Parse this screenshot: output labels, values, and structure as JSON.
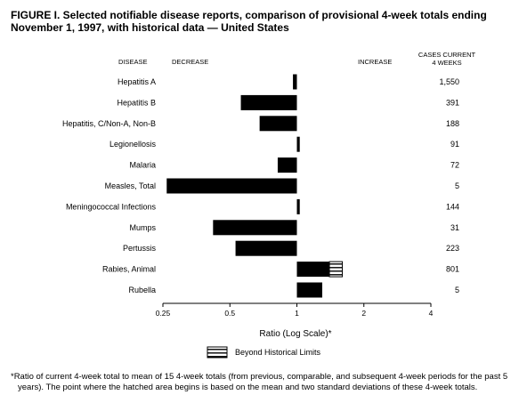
{
  "title": "FIGURE I. Selected notifiable disease reports, comparison of provisional 4-week totals ending November 1, 1997, with historical data — United States",
  "headers": {
    "disease": "DISEASE",
    "decrease": "DECREASE",
    "increase": "INCREASE",
    "cases_line1": "CASES CURRENT",
    "cases_line2": "4 WEEKS"
  },
  "legend_label": "Beyond Historical Limits",
  "footnote": "*Ratio of current 4-week total to mean of 15 4-week totals (from previous, comparable, and subsequent 4-week periods for the past 5 years). The point where the hatched area begins is based on the mean and two standard deviations of these 4-week totals.",
  "colors": {
    "bar": "#000000",
    "hatch_fill": "#ffffff",
    "background": "#ffffff"
  },
  "chart_data": {
    "type": "bar",
    "orientation": "horizontal",
    "xlabel": "Ratio (Log Scale)*",
    "xscale": "log2",
    "xlim": [
      0.25,
      4
    ],
    "xticks": [
      "0.25",
      "0.5",
      "1",
      "2",
      "4"
    ],
    "xtick_values": [
      0.25,
      0.5,
      1,
      2,
      4
    ],
    "baseline": 1,
    "categories": [
      "Hepatitis A",
      "Hepatitis B",
      "Hepatitis, C/Non-A, Non-B",
      "Legionellosis",
      "Malaria",
      "Measles, Total",
      "Meningococcal Infections",
      "Mumps",
      "Pertussis",
      "Rabies, Animal",
      "Rubella"
    ],
    "values": [
      0.96,
      0.56,
      0.68,
      1.03,
      0.82,
      0.26,
      1.03,
      0.42,
      0.53,
      1.6,
      1.3
    ],
    "cases_current_4_weeks": [
      "1,550",
      "391",
      "188",
      "91",
      "72",
      "5",
      "144",
      "31",
      "223",
      "801",
      "5"
    ],
    "beyond_historical_limits_from": [
      null,
      null,
      null,
      null,
      null,
      null,
      null,
      null,
      null,
      1.4,
      null
    ]
  }
}
